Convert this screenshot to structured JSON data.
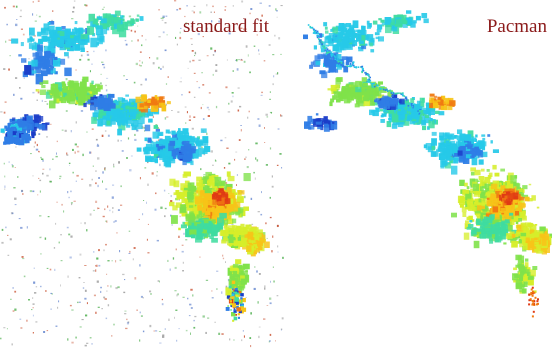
{
  "panels": {
    "left": {
      "title": "standard fit"
    },
    "right": {
      "title": "Pacman"
    }
  },
  "colors": {
    "title": "#8b1a1a",
    "background": "#ffffff",
    "colormap": [
      "#1a3cc8",
      "#2f7de6",
      "#26c9e8",
      "#3fdca0",
      "#7fe24a",
      "#d6ee2a",
      "#f7c418",
      "#f07a12",
      "#e03a14"
    ],
    "noise": [
      "#9a9a9a",
      "#6a8ad0",
      "#c85030",
      "#50b050"
    ]
  }
}
